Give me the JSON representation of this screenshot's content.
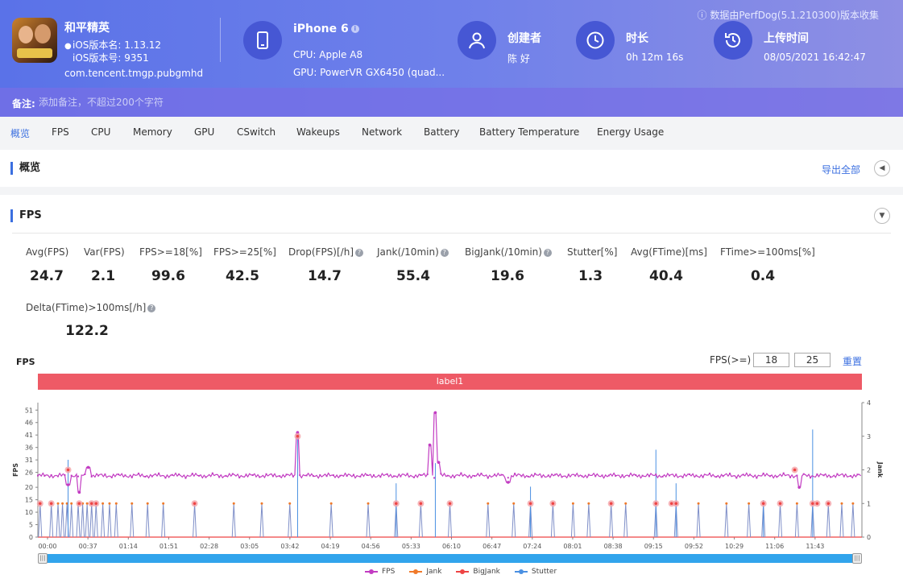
{
  "header": {
    "data_note": "数据由PerfDog(5.1.210300)版本收集",
    "app": {
      "name": "和平精英",
      "version_name": "iOS版本名: 1.13.12",
      "version_code": "iOS版本号: 9351",
      "package": "com.tencent.tmgp.pubgmhd"
    },
    "device": {
      "name": "iPhone 6",
      "info_icon": "i",
      "cpu": "CPU: Apple A8",
      "gpu": "GPU: PowerVR GX6450 (quad..."
    },
    "creator": {
      "title": "创建者",
      "value": "陈 好"
    },
    "duration": {
      "title": "时长",
      "value": "0h 12m 16s"
    },
    "upload": {
      "title": "上传时间",
      "value": "08/05/2021 16:42:47"
    },
    "remark": {
      "label": "备注:",
      "placeholder": "添加备注，不超过200个字符"
    }
  },
  "tabs": [
    {
      "label": "概览",
      "active": true
    },
    {
      "label": "FPS"
    },
    {
      "label": "CPU"
    },
    {
      "label": "Memory"
    },
    {
      "label": "GPU"
    },
    {
      "label": "CSwitch"
    },
    {
      "label": "Wakeups"
    },
    {
      "label": "Network"
    },
    {
      "label": "Battery"
    },
    {
      "label": "Battery Temperature"
    },
    {
      "label": "Energy Usage"
    }
  ],
  "overview": {
    "title": "概览",
    "export": "导出全部",
    "collapse_icon": "◀"
  },
  "fps_section": {
    "title": "FPS",
    "collapse_icon": "▼",
    "help_icon": "?",
    "metrics": [
      {
        "label": "Avg(FPS)",
        "value": "24.7"
      },
      {
        "label": "Var(FPS)",
        "value": "2.1"
      },
      {
        "label": "FPS>=18[%]",
        "value": "99.6"
      },
      {
        "label": "FPS>=25[%]",
        "value": "42.5"
      },
      {
        "label": "Drop(FPS)[/h]",
        "value": "14.7",
        "help": true
      },
      {
        "label": "Jank(/10min)",
        "value": "55.4",
        "help": true
      },
      {
        "label": "BigJank(/10min)",
        "value": "19.6",
        "help": true
      },
      {
        "label": "Stutter[%]",
        "value": "1.3"
      },
      {
        "label": "Avg(FTime)[ms]",
        "value": "40.4"
      },
      {
        "label": "FTime>=100ms[%]",
        "value": "0.4"
      },
      {
        "label": "Delta(FTime)>100ms[/h]",
        "value": "122.2",
        "help": true
      }
    ],
    "chart_title": "FPS",
    "threshold_label": "FPS(>=)",
    "threshold_1": "18",
    "threshold_2": "25",
    "reset": "重置",
    "label_bar": "label1"
  },
  "chart_data": {
    "type": "line",
    "ylabel": "FPS",
    "y2label": "Jank",
    "ylim": [
      0,
      54
    ],
    "y2lim": [
      0,
      4
    ],
    "yticks": [
      0,
      5,
      10,
      15,
      20,
      26,
      31,
      36,
      41,
      46,
      51
    ],
    "y2ticks": [
      0,
      1,
      2,
      3,
      4
    ],
    "xticks": [
      "00:00",
      "00:37",
      "01:14",
      "01:51",
      "02:28",
      "03:05",
      "03:42",
      "04:19",
      "04:56",
      "05:33",
      "06:10",
      "06:47",
      "07:24",
      "08:01",
      "08:38",
      "09:15",
      "09:52",
      "10:29",
      "11:06",
      "11:43"
    ],
    "xlim_seconds": [
      0,
      736
    ],
    "legend": [
      "FPS",
      "Jank",
      "BigJank",
      "Stutter"
    ],
    "colors": {
      "FPS": "#c23cc2",
      "Jank": "#f07a2a",
      "BigJank": "#ee4444",
      "Stutter": "#4a90e2"
    },
    "fps_baseline": 24.7,
    "fps_spikes": [
      [
        27,
        21
      ],
      [
        37,
        18
      ],
      [
        45,
        28
      ],
      [
        232,
        42
      ],
      [
        350,
        37
      ],
      [
        355,
        50
      ],
      [
        358,
        30
      ],
      [
        420,
        22
      ],
      [
        680,
        20
      ]
    ],
    "jank_events": [
      2,
      12,
      18,
      22,
      26,
      30,
      36,
      40,
      44,
      48,
      52,
      58,
      64,
      70,
      84,
      98,
      112,
      140,
      175,
      200,
      225,
      262,
      295,
      320,
      342,
      368,
      402,
      425,
      440,
      460,
      478,
      492,
      512,
      525,
      552,
      570,
      590,
      615,
      635,
      648,
      663,
      678,
      692,
      706,
      718,
      728
    ],
    "bigjank_markers": [
      [
        2,
        1
      ],
      [
        12,
        1
      ],
      [
        27,
        2
      ],
      [
        37,
        1
      ],
      [
        48,
        1
      ],
      [
        52,
        1
      ],
      [
        140,
        1
      ],
      [
        232,
        3
      ],
      [
        320,
        1
      ],
      [
        342,
        1
      ],
      [
        368,
        1
      ],
      [
        440,
        1
      ],
      [
        460,
        1
      ],
      [
        512,
        1
      ],
      [
        552,
        1
      ],
      [
        566,
        1
      ],
      [
        570,
        1
      ],
      [
        648,
        1
      ],
      [
        663,
        1
      ],
      [
        676,
        2
      ],
      [
        692,
        1
      ],
      [
        696,
        1
      ],
      [
        706,
        1
      ]
    ],
    "stutter_events": [
      [
        27,
        2.3
      ],
      [
        232,
        3
      ],
      [
        320,
        1.6
      ],
      [
        355,
        2.2
      ],
      [
        440,
        1.5
      ],
      [
        552,
        2.6
      ],
      [
        570,
        1.6
      ],
      [
        648,
        1.1
      ],
      [
        692,
        3.2
      ]
    ]
  }
}
